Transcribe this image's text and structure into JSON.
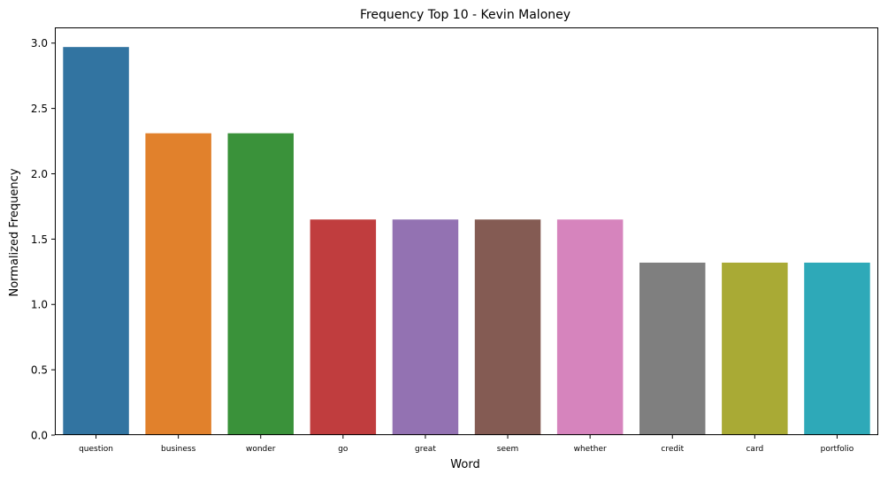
{
  "chart_data": {
    "type": "bar",
    "title": "Frequency Top 10 - Kevin Maloney",
    "xlabel": "Word",
    "ylabel": "Normalized Frequency",
    "categories": [
      "question",
      "business",
      "wonder",
      "go",
      "great",
      "seem",
      "whether",
      "credit",
      "card",
      "portfolio"
    ],
    "values": [
      2.97,
      2.31,
      2.31,
      1.65,
      1.65,
      1.65,
      1.65,
      1.32,
      1.32,
      1.32
    ],
    "colors": [
      "#3274a1",
      "#e1812c",
      "#3a923a",
      "#c03d3e",
      "#9372b2",
      "#845b53",
      "#d684bd",
      "#7f7f7f",
      "#a9aa35",
      "#2ea9b8"
    ],
    "ylim": [
      0,
      3.12
    ],
    "yticks": [
      "0.0",
      "0.5",
      "1.0",
      "1.5",
      "2.0",
      "2.5",
      "3.0"
    ],
    "grid": false,
    "legend": "none"
  }
}
